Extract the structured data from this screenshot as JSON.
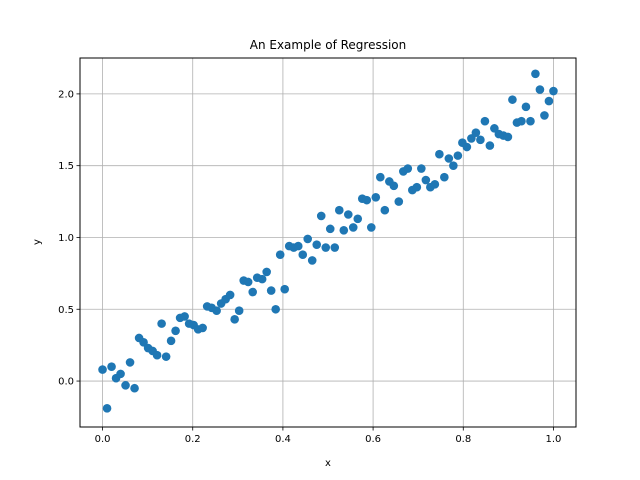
{
  "chart_data": {
    "type": "scatter",
    "title": "An Example of Regression",
    "xlabel": "x",
    "ylabel": "y",
    "xlim": [
      -0.05,
      1.05
    ],
    "ylim": [
      -0.32,
      2.25
    ],
    "xticks": [
      0.0,
      0.2,
      0.4,
      0.6,
      0.8,
      1.0
    ],
    "xtick_labels": [
      "0.0",
      "0.2",
      "0.4",
      "0.6",
      "0.8",
      "1.0"
    ],
    "yticks": [
      0.0,
      0.5,
      1.0,
      1.5,
      2.0
    ],
    "ytick_labels": [
      "0.0",
      "0.5",
      "1.0",
      "1.5",
      "2.0"
    ],
    "grid": true,
    "legend": "none",
    "marker_color": "#1f77b4",
    "series": [
      {
        "x": [
          0.0,
          0.01,
          0.02,
          0.03,
          0.04,
          0.051,
          0.061,
          0.071,
          0.081,
          0.091,
          0.101,
          0.111,
          0.121,
          0.131,
          0.141,
          0.152,
          0.162,
          0.172,
          0.182,
          0.192,
          0.202,
          0.212,
          0.222,
          0.232,
          0.242,
          0.253,
          0.263,
          0.273,
          0.283,
          0.293,
          0.303,
          0.313,
          0.323,
          0.333,
          0.343,
          0.354,
          0.364,
          0.374,
          0.384,
          0.394,
          0.404,
          0.414,
          0.424,
          0.434,
          0.444,
          0.455,
          0.465,
          0.475,
          0.485,
          0.495,
          0.505,
          0.515,
          0.525,
          0.535,
          0.545,
          0.556,
          0.566,
          0.576,
          0.586,
          0.596,
          0.606,
          0.616,
          0.626,
          0.636,
          0.646,
          0.657,
          0.667,
          0.677,
          0.687,
          0.697,
          0.707,
          0.717,
          0.727,
          0.737,
          0.747,
          0.758,
          0.768,
          0.778,
          0.788,
          0.798,
          0.808,
          0.818,
          0.828,
          0.838,
          0.848,
          0.859,
          0.869,
          0.879,
          0.889,
          0.899,
          0.909,
          0.919,
          0.929,
          0.939,
          0.949,
          0.96,
          0.97,
          0.98,
          0.99,
          1.0
        ],
        "y": [
          0.08,
          -0.19,
          0.1,
          0.02,
          0.05,
          -0.03,
          0.13,
          -0.05,
          0.3,
          0.27,
          0.23,
          0.21,
          0.18,
          0.4,
          0.17,
          0.28,
          0.35,
          0.44,
          0.45,
          0.4,
          0.39,
          0.36,
          0.37,
          0.52,
          0.51,
          0.49,
          0.54,
          0.57,
          0.6,
          0.43,
          0.49,
          0.7,
          0.69,
          0.62,
          0.72,
          0.71,
          0.76,
          0.63,
          0.5,
          0.88,
          0.64,
          0.94,
          0.93,
          0.94,
          0.88,
          0.99,
          0.84,
          0.95,
          1.15,
          0.93,
          1.06,
          0.93,
          1.19,
          1.05,
          1.16,
          1.07,
          1.13,
          1.27,
          1.26,
          1.07,
          1.28,
          1.42,
          1.19,
          1.39,
          1.36,
          1.25,
          1.46,
          1.48,
          1.33,
          1.35,
          1.48,
          1.4,
          1.35,
          1.37,
          1.58,
          1.42,
          1.55,
          1.5,
          1.57,
          1.66,
          1.63,
          1.69,
          1.73,
          1.68,
          1.81,
          1.64,
          1.76,
          1.72,
          1.71,
          1.7,
          1.96,
          1.8,
          1.81,
          1.91,
          1.81,
          2.14,
          2.03,
          1.85,
          1.95,
          2.02
        ]
      }
    ]
  }
}
